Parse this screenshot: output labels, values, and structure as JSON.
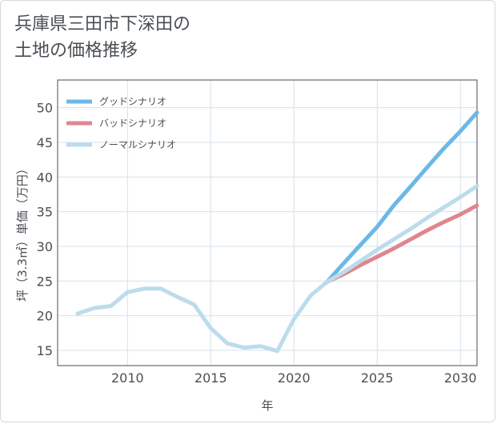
{
  "chart_data": {
    "type": "line",
    "title_line1": "兵庫県三田市下深田の",
    "title_line2": "土地の価格推移",
    "xlabel": "年",
    "ylabel": "坪（3.3㎡）単価（万円）",
    "xlim": [
      2005.8,
      2031
    ],
    "ylim": [
      12.8,
      54
    ],
    "x_ticks": [
      2010,
      2015,
      2020,
      2025,
      2030
    ],
    "y_ticks": [
      15,
      20,
      25,
      30,
      35,
      40,
      45,
      50
    ],
    "grid": true,
    "legend_position": "top-left",
    "history": {
      "x": [
        2007,
        2008,
        2009,
        2010,
        2011,
        2012,
        2013,
        2014,
        2015,
        2016,
        2017,
        2018,
        2019,
        2020,
        2021,
        2022
      ],
      "y": [
        20.3,
        21.1,
        21.4,
        23.4,
        23.9,
        23.9,
        22.7,
        21.6,
        18.2,
        16.0,
        15.4,
        15.6,
        14.9,
        19.5,
        22.9,
        24.9
      ]
    },
    "series": [
      {
        "name": "グッドシナリオ",
        "color": "#6cb8e6",
        "x": [
          2022,
          2023,
          2024,
          2025,
          2026,
          2027,
          2028,
          2029,
          2030,
          2031
        ],
        "y": [
          24.9,
          27.6,
          30.2,
          32.8,
          35.9,
          38.6,
          41.4,
          44.1,
          46.6,
          49.3
        ]
      },
      {
        "name": "バッドシナリオ",
        "color": "#e0868e",
        "x": [
          2022,
          2023,
          2024,
          2025,
          2026,
          2027,
          2028,
          2029,
          2030,
          2031
        ],
        "y": [
          24.9,
          26.0,
          27.3,
          28.5,
          29.7,
          31.0,
          32.3,
          33.5,
          34.6,
          35.9
        ]
      },
      {
        "name": "ノーマルシナリオ",
        "color": "#bcdcec",
        "x": [
          2022,
          2023,
          2024,
          2025,
          2026,
          2027,
          2028,
          2029,
          2030,
          2031
        ],
        "y": [
          24.9,
          26.3,
          27.9,
          29.5,
          31.0,
          32.5,
          34.1,
          35.6,
          37.1,
          38.7
        ]
      }
    ]
  }
}
